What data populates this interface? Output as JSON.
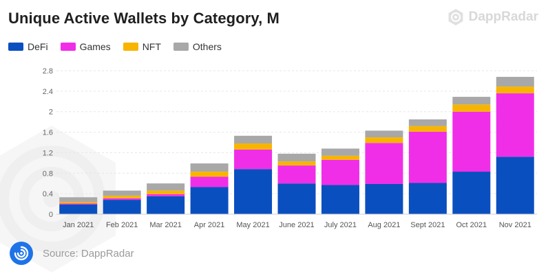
{
  "header": {
    "title": "Unique Active Wallets by Category, M",
    "brand": "DappRadar"
  },
  "footer": {
    "source": "Source: DappRadar"
  },
  "colors": {
    "DeFi": "#0a4fbf",
    "Games": "#f02ee8",
    "NFT": "#f7b500",
    "Others": "#a8a8a8"
  },
  "icons": {
    "brand": "dappradar-logo-icon",
    "footer": "dappradar-badge-icon"
  },
  "chart_data": {
    "type": "bar",
    "stacked": true,
    "title": "Unique Active Wallets by Category, M",
    "xlabel": "",
    "ylabel": "",
    "ylim": [
      0,
      2.8
    ],
    "yticks": [
      "0",
      "0.4",
      "0.8",
      "1.2",
      "1.6",
      "2",
      "2.4",
      "2.8"
    ],
    "ytick_values": [
      0,
      0.4,
      0.8,
      1.2,
      1.6,
      2.0,
      2.4,
      2.8
    ],
    "grid": true,
    "legend_position": "top-left",
    "categories": [
      "Jan 2021",
      "Feb 2021",
      "Mar 2021",
      "Apr 2021",
      "May 2021",
      "June 2021",
      "July 2021",
      "Aug 2021",
      "Sept 2021",
      "Oct 2021",
      "Nov 2021"
    ],
    "series": [
      {
        "name": "DeFi",
        "values": [
          0.19,
          0.28,
          0.35,
          0.53,
          0.88,
          0.6,
          0.57,
          0.59,
          0.61,
          0.83,
          1.12
        ]
      },
      {
        "name": "Games",
        "values": [
          0.02,
          0.03,
          0.04,
          0.2,
          0.38,
          0.35,
          0.49,
          0.8,
          1.0,
          1.17,
          1.24
        ]
      },
      {
        "name": "NFT",
        "values": [
          0.03,
          0.05,
          0.07,
          0.1,
          0.12,
          0.08,
          0.08,
          0.11,
          0.11,
          0.14,
          0.13
        ]
      },
      {
        "name": "Others",
        "values": [
          0.09,
          0.1,
          0.14,
          0.16,
          0.15,
          0.15,
          0.14,
          0.13,
          0.13,
          0.15,
          0.19
        ]
      }
    ]
  }
}
